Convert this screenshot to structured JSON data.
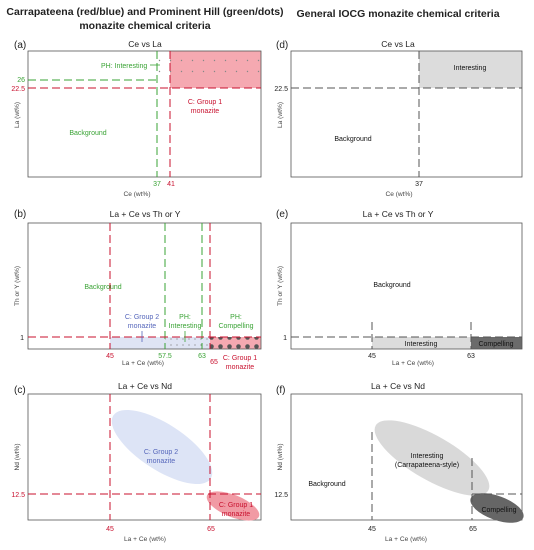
{
  "colors": {
    "red": "#c8102e",
    "green": "#3aa335",
    "blue": "#5566bb",
    "black": "#111111",
    "grey": "#777777"
  },
  "titles": {
    "left": [
      "Carrapateena (red/blue) and Prominent Hill (green/dots)",
      "monazite chemical criteria"
    ],
    "right": "General IOCG monazite chemical criteria"
  },
  "panels": {
    "a": {
      "label": "(a)",
      "title": "Ce vs La",
      "xlabel": "Ce (wt%)",
      "ylabel": "La (wt%)",
      "ticks": {
        "x1": "37",
        "x2": "41",
        "y1": "26",
        "y2": "22.5"
      },
      "texts": {
        "interesting": "PH: Interesting",
        "group1_l1": "C: Group 1",
        "group1_l2": "monazite",
        "background": "Background"
      }
    },
    "b": {
      "label": "(b)",
      "title": "La + Ce vs Th or Y",
      "xlabel": "La + Ce (wt%)",
      "ylabel": "Th or Y (wt%)",
      "ticks": {
        "x45": "45",
        "x575": "57.5",
        "x63": "63",
        "x65": "65",
        "y1": "1"
      },
      "texts": {
        "background": "Background",
        "group2_l1": "C: Group 2",
        "group2_l2": "monazite",
        "ph_l1": "PH:",
        "ph_interesting": "Interesting",
        "ph_compelling": "Compelling",
        "group1_l1": "C: Group 1",
        "group1_l2": "monazite"
      }
    },
    "c": {
      "label": "(c)",
      "title": "La + Ce vs Nd",
      "xlabel": "La + Ce (wt%)",
      "ylabel": "Nd (wt%)",
      "ticks": {
        "x45": "45",
        "x65": "65",
        "y125": "12.5"
      },
      "texts": {
        "group2_l1": "C: Group 2",
        "group2_l2": "monazite",
        "group1_l1": "C: Group 1",
        "group1_l2": "monazite"
      }
    },
    "d": {
      "label": "(d)",
      "title": "Ce vs La",
      "xlabel": "Ce (wt%)",
      "ylabel": "La (wt%)",
      "ticks": {
        "x37": "37",
        "y225": "22.5"
      },
      "texts": {
        "interesting": "Interesting",
        "background": "Background"
      }
    },
    "e": {
      "label": "(e)",
      "title": "La + Ce vs Th or Y",
      "xlabel": "La + Ce (wt%)",
      "ylabel": "Th or Y (wt%)",
      "ticks": {
        "x45": "45",
        "x63": "63",
        "y1": "1"
      },
      "texts": {
        "background": "Background",
        "interesting": "Interesting",
        "compelling": "Compelling"
      }
    },
    "f": {
      "label": "(f)",
      "title": "La + Ce vs Nd",
      "xlabel": "La + Ce (wt%)",
      "ylabel": "Nd (wt%)",
      "ticks": {
        "x45": "45",
        "x65": "65",
        "y125": "12.5"
      },
      "texts": {
        "background": "Background",
        "interesting_l1": "Interesting",
        "interesting_l2": "(Carrapateena-style)",
        "compelling": "Compelling"
      }
    }
  }
}
